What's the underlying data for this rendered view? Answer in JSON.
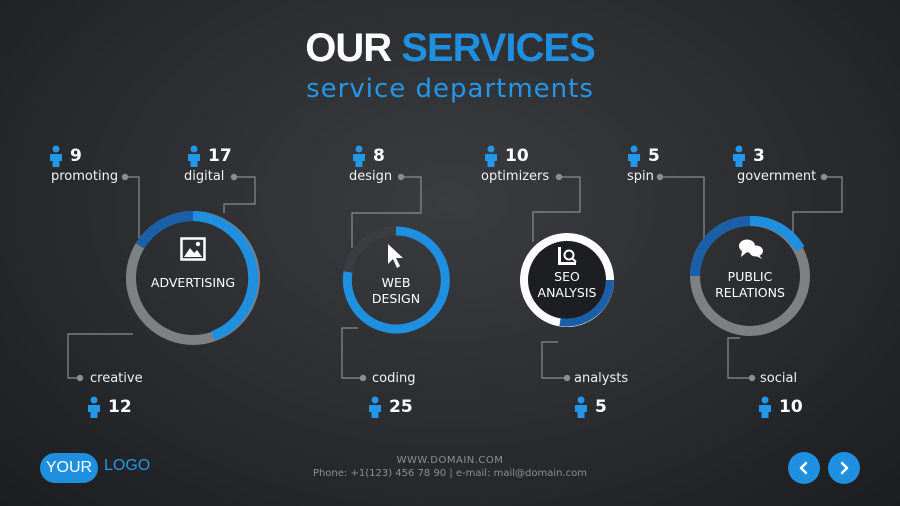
{
  "header": {
    "title_part1": "OUR",
    "title_part2": "SERVICES",
    "subtitle": "service departments"
  },
  "services": [
    {
      "name_line1": "ADVERTISING",
      "name_line2": "",
      "icon": "image-icon",
      "stats": [
        {
          "label": "promoting",
          "count": "9"
        },
        {
          "label": "digital",
          "count": "17"
        },
        {
          "label": "creative",
          "count": "12"
        }
      ]
    },
    {
      "name_line1": "WEB",
      "name_line2": "DESIGN",
      "icon": "cursor-icon",
      "stats": [
        {
          "label": "design",
          "count": "8"
        },
        {
          "label": "coding",
          "count": "25"
        }
      ]
    },
    {
      "name_line1": "SEO",
      "name_line2": "ANALYSIS",
      "icon": "analysis-icon",
      "stats": [
        {
          "label": "optimizers",
          "count": "10"
        },
        {
          "label": "analysts",
          "count": "5"
        }
      ]
    },
    {
      "name_line1": "PUBLIC",
      "name_line2": "RELATIONS",
      "icon": "chat-bubbles-icon",
      "stats": [
        {
          "label": "spin",
          "count": "5"
        },
        {
          "label": "government",
          "count": "3"
        },
        {
          "label": "social",
          "count": "10"
        }
      ]
    }
  ],
  "footer": {
    "url": "WWW.DOMAIN.COM",
    "contact": "Phone: +1(123) 456 78 90 | e-mail: mail@domain.com",
    "logo_part1": "YOUR",
    "logo_part2": "LOGO"
  },
  "nav": {
    "prev_icon": "chevron-left-icon",
    "next_icon": "chevron-right-icon"
  },
  "colors": {
    "accent": "#1f8fe0",
    "accent_dark": "#1a5fa8",
    "ring_gray": "#7d8085",
    "ring_dark": "#3a3d42",
    "background": "#2a2c2f"
  }
}
